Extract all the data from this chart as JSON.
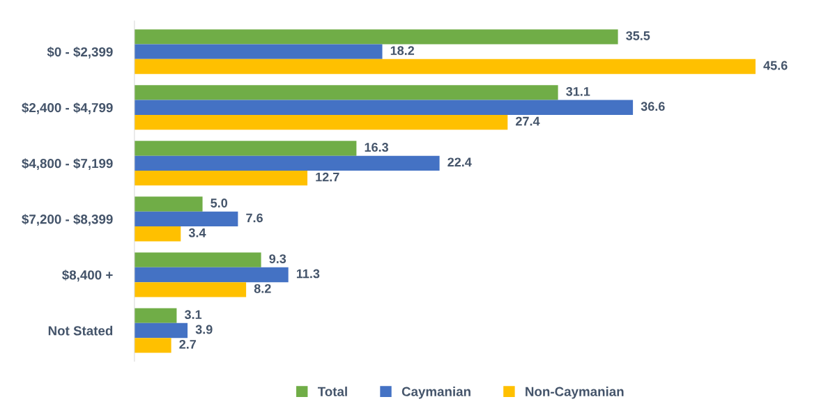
{
  "chart_data": {
    "type": "bar",
    "orientation": "horizontal",
    "grid": false,
    "legend": "bottom",
    "categories": [
      "$0 - $2,399",
      "$2,400 - $4,799",
      "$4,800 - $7,199",
      "$7,200 - $8,399",
      "$8,400 +",
      "Not Stated"
    ],
    "series": [
      {
        "name": "Total",
        "color": "#70ad47",
        "values": [
          35.5,
          31.1,
          16.3,
          5.0,
          9.3,
          3.1
        ],
        "value_labels": [
          "35.5",
          "31.1",
          "16.3",
          "5.0",
          "9.3",
          "3.1"
        ]
      },
      {
        "name": "Caymanian",
        "color": "#4472c4",
        "values": [
          18.2,
          36.6,
          22.4,
          7.6,
          11.3,
          3.9
        ],
        "value_labels": [
          "18.2",
          "36.6",
          "22.4",
          "7.6",
          "11.3",
          "3.9"
        ]
      },
      {
        "name": "Non-Caymanian",
        "color": "#ffc000",
        "values": [
          45.6,
          27.4,
          12.7,
          3.4,
          8.2,
          2.7
        ],
        "value_labels": [
          "45.6",
          "27.4",
          "12.7",
          "3.4",
          "8.2",
          "2.7"
        ]
      }
    ]
  }
}
